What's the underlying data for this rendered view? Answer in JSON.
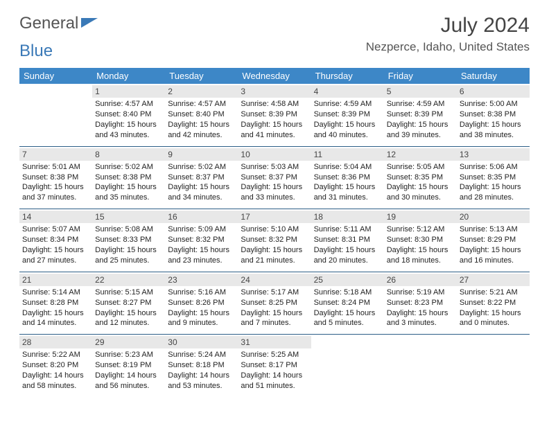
{
  "brand": {
    "part1": "General",
    "part2": "Blue"
  },
  "title": "July 2024",
  "location": "Nezperce, Idaho, United States",
  "header_bg": "#3d87c7",
  "header_fg": "#ffffff",
  "daynum_bg": "#e8e8e8",
  "rule_color": "#2b5d86",
  "days": [
    "Sunday",
    "Monday",
    "Tuesday",
    "Wednesday",
    "Thursday",
    "Friday",
    "Saturday"
  ],
  "weeks": [
    [
      {
        "n": "",
        "sr": "",
        "ss": "",
        "dl1": "",
        "dl2": ""
      },
      {
        "n": "1",
        "sr": "Sunrise: 4:57 AM",
        "ss": "Sunset: 8:40 PM",
        "dl1": "Daylight: 15 hours",
        "dl2": "and 43 minutes."
      },
      {
        "n": "2",
        "sr": "Sunrise: 4:57 AM",
        "ss": "Sunset: 8:40 PM",
        "dl1": "Daylight: 15 hours",
        "dl2": "and 42 minutes."
      },
      {
        "n": "3",
        "sr": "Sunrise: 4:58 AM",
        "ss": "Sunset: 8:39 PM",
        "dl1": "Daylight: 15 hours",
        "dl2": "and 41 minutes."
      },
      {
        "n": "4",
        "sr": "Sunrise: 4:59 AM",
        "ss": "Sunset: 8:39 PM",
        "dl1": "Daylight: 15 hours",
        "dl2": "and 40 minutes."
      },
      {
        "n": "5",
        "sr": "Sunrise: 4:59 AM",
        "ss": "Sunset: 8:39 PM",
        "dl1": "Daylight: 15 hours",
        "dl2": "and 39 minutes."
      },
      {
        "n": "6",
        "sr": "Sunrise: 5:00 AM",
        "ss": "Sunset: 8:38 PM",
        "dl1": "Daylight: 15 hours",
        "dl2": "and 38 minutes."
      }
    ],
    [
      {
        "n": "7",
        "sr": "Sunrise: 5:01 AM",
        "ss": "Sunset: 8:38 PM",
        "dl1": "Daylight: 15 hours",
        "dl2": "and 37 minutes."
      },
      {
        "n": "8",
        "sr": "Sunrise: 5:02 AM",
        "ss": "Sunset: 8:38 PM",
        "dl1": "Daylight: 15 hours",
        "dl2": "and 35 minutes."
      },
      {
        "n": "9",
        "sr": "Sunrise: 5:02 AM",
        "ss": "Sunset: 8:37 PM",
        "dl1": "Daylight: 15 hours",
        "dl2": "and 34 minutes."
      },
      {
        "n": "10",
        "sr": "Sunrise: 5:03 AM",
        "ss": "Sunset: 8:37 PM",
        "dl1": "Daylight: 15 hours",
        "dl2": "and 33 minutes."
      },
      {
        "n": "11",
        "sr": "Sunrise: 5:04 AM",
        "ss": "Sunset: 8:36 PM",
        "dl1": "Daylight: 15 hours",
        "dl2": "and 31 minutes."
      },
      {
        "n": "12",
        "sr": "Sunrise: 5:05 AM",
        "ss": "Sunset: 8:35 PM",
        "dl1": "Daylight: 15 hours",
        "dl2": "and 30 minutes."
      },
      {
        "n": "13",
        "sr": "Sunrise: 5:06 AM",
        "ss": "Sunset: 8:35 PM",
        "dl1": "Daylight: 15 hours",
        "dl2": "and 28 minutes."
      }
    ],
    [
      {
        "n": "14",
        "sr": "Sunrise: 5:07 AM",
        "ss": "Sunset: 8:34 PM",
        "dl1": "Daylight: 15 hours",
        "dl2": "and 27 minutes."
      },
      {
        "n": "15",
        "sr": "Sunrise: 5:08 AM",
        "ss": "Sunset: 8:33 PM",
        "dl1": "Daylight: 15 hours",
        "dl2": "and 25 minutes."
      },
      {
        "n": "16",
        "sr": "Sunrise: 5:09 AM",
        "ss": "Sunset: 8:32 PM",
        "dl1": "Daylight: 15 hours",
        "dl2": "and 23 minutes."
      },
      {
        "n": "17",
        "sr": "Sunrise: 5:10 AM",
        "ss": "Sunset: 8:32 PM",
        "dl1": "Daylight: 15 hours",
        "dl2": "and 21 minutes."
      },
      {
        "n": "18",
        "sr": "Sunrise: 5:11 AM",
        "ss": "Sunset: 8:31 PM",
        "dl1": "Daylight: 15 hours",
        "dl2": "and 20 minutes."
      },
      {
        "n": "19",
        "sr": "Sunrise: 5:12 AM",
        "ss": "Sunset: 8:30 PM",
        "dl1": "Daylight: 15 hours",
        "dl2": "and 18 minutes."
      },
      {
        "n": "20",
        "sr": "Sunrise: 5:13 AM",
        "ss": "Sunset: 8:29 PM",
        "dl1": "Daylight: 15 hours",
        "dl2": "and 16 minutes."
      }
    ],
    [
      {
        "n": "21",
        "sr": "Sunrise: 5:14 AM",
        "ss": "Sunset: 8:28 PM",
        "dl1": "Daylight: 15 hours",
        "dl2": "and 14 minutes."
      },
      {
        "n": "22",
        "sr": "Sunrise: 5:15 AM",
        "ss": "Sunset: 8:27 PM",
        "dl1": "Daylight: 15 hours",
        "dl2": "and 12 minutes."
      },
      {
        "n": "23",
        "sr": "Sunrise: 5:16 AM",
        "ss": "Sunset: 8:26 PM",
        "dl1": "Daylight: 15 hours",
        "dl2": "and 9 minutes."
      },
      {
        "n": "24",
        "sr": "Sunrise: 5:17 AM",
        "ss": "Sunset: 8:25 PM",
        "dl1": "Daylight: 15 hours",
        "dl2": "and 7 minutes."
      },
      {
        "n": "25",
        "sr": "Sunrise: 5:18 AM",
        "ss": "Sunset: 8:24 PM",
        "dl1": "Daylight: 15 hours",
        "dl2": "and 5 minutes."
      },
      {
        "n": "26",
        "sr": "Sunrise: 5:19 AM",
        "ss": "Sunset: 8:23 PM",
        "dl1": "Daylight: 15 hours",
        "dl2": "and 3 minutes."
      },
      {
        "n": "27",
        "sr": "Sunrise: 5:21 AM",
        "ss": "Sunset: 8:22 PM",
        "dl1": "Daylight: 15 hours",
        "dl2": "and 0 minutes."
      }
    ],
    [
      {
        "n": "28",
        "sr": "Sunrise: 5:22 AM",
        "ss": "Sunset: 8:20 PM",
        "dl1": "Daylight: 14 hours",
        "dl2": "and 58 minutes."
      },
      {
        "n": "29",
        "sr": "Sunrise: 5:23 AM",
        "ss": "Sunset: 8:19 PM",
        "dl1": "Daylight: 14 hours",
        "dl2": "and 56 minutes."
      },
      {
        "n": "30",
        "sr": "Sunrise: 5:24 AM",
        "ss": "Sunset: 8:18 PM",
        "dl1": "Daylight: 14 hours",
        "dl2": "and 53 minutes."
      },
      {
        "n": "31",
        "sr": "Sunrise: 5:25 AM",
        "ss": "Sunset: 8:17 PM",
        "dl1": "Daylight: 14 hours",
        "dl2": "and 51 minutes."
      },
      {
        "n": "",
        "sr": "",
        "ss": "",
        "dl1": "",
        "dl2": ""
      },
      {
        "n": "",
        "sr": "",
        "ss": "",
        "dl1": "",
        "dl2": ""
      },
      {
        "n": "",
        "sr": "",
        "ss": "",
        "dl1": "",
        "dl2": ""
      }
    ]
  ]
}
